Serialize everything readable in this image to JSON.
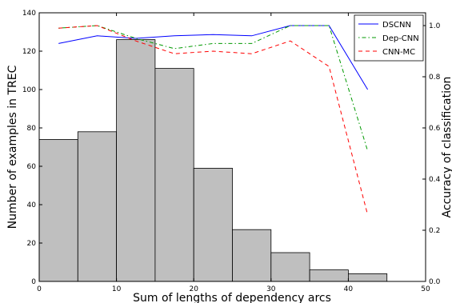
{
  "chart_data": {
    "type": "bar",
    "xlabel": "Sum of lengths of dependency arcs",
    "ylabel_left": "Number of examples in TREC",
    "ylabel_right": "Accuracy of classification",
    "xlim": [
      0,
      50
    ],
    "ylim_left": [
      0,
      140
    ],
    "ylim_right": [
      0,
      1.05
    ],
    "x_ticks": [
      "0",
      "10",
      "20",
      "30",
      "40",
      "50"
    ],
    "y_left_ticks": [
      "0",
      "20",
      "40",
      "60",
      "80",
      "100",
      "120",
      "140"
    ],
    "y_right_ticks": [
      "0.0",
      "0.2",
      "0.4",
      "0.6",
      "0.8",
      "1.0"
    ],
    "histogram": {
      "bin_edges": [
        0,
        5,
        10,
        15,
        20,
        25,
        30,
        35,
        40,
        45
      ],
      "counts": [
        74,
        78,
        126,
        111,
        59,
        27,
        15,
        6,
        4
      ],
      "color": "#bfbfbf"
    },
    "x": [
      2.5,
      7.5,
      12.5,
      17.5,
      22.5,
      27.5,
      32.5,
      37.5,
      42.5
    ],
    "series": [
      {
        "name": "DSCNN",
        "color": "#0000ff",
        "dash": "",
        "values": [
          0.93,
          0.96,
          0.95,
          0.96,
          0.965,
          0.96,
          1.0,
          1.0,
          0.75
        ]
      },
      {
        "name": "Dep-CNN",
        "color": "#009900",
        "dash": "1.5,3,5,3",
        "values": [
          0.99,
          1.0,
          0.95,
          0.91,
          0.93,
          0.93,
          1.0,
          1.0,
          0.51
        ]
      },
      {
        "name": "CNN-MC",
        "color": "#ff0000",
        "dash": "5,4",
        "values": [
          0.99,
          1.0,
          0.94,
          0.89,
          0.9,
          0.89,
          0.94,
          0.84,
          0.26
        ]
      }
    ],
    "legend_position": "top-right"
  }
}
